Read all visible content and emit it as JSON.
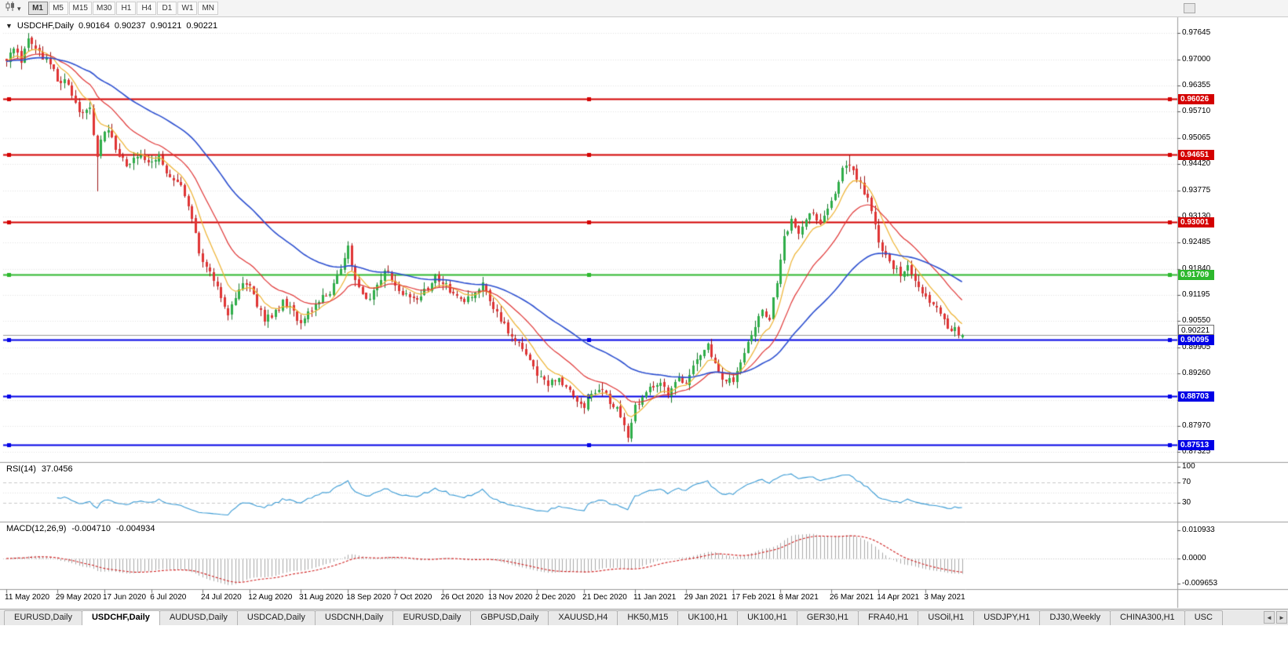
{
  "icons": {
    "chart_type": "candlestick-chart",
    "dropdown": "▾",
    "symbol_menu": "▼",
    "scroll_left": "◄",
    "scroll_right": "►"
  },
  "toolbar": {
    "timeframes": [
      {
        "label": "M1",
        "active": true
      },
      {
        "label": "M5",
        "active": false
      },
      {
        "label": "M15",
        "active": false
      },
      {
        "label": "M30",
        "active": false
      },
      {
        "label": "H1",
        "active": false
      },
      {
        "label": "H4",
        "active": false
      },
      {
        "label": "D1",
        "active": false
      },
      {
        "label": "W1",
        "active": false
      },
      {
        "label": "MN",
        "active": false
      }
    ]
  },
  "symbol_panel": {
    "menu_glyph": "▼",
    "title": "USDCHF,Daily",
    "open": "0.90164",
    "high": "0.90237",
    "low": "0.90121",
    "close": "0.90221"
  },
  "price_axis": {
    "ticks": [
      "0.97645",
      "0.97000",
      "0.96355",
      "0.95710",
      "0.95065",
      "0.94420",
      "0.93775",
      "0.93130",
      "0.92485",
      "0.91840",
      "0.91195",
      "0.90550",
      "0.89905",
      "0.89260",
      "0.88615",
      "0.87970",
      "0.87325"
    ],
    "current_price": "0.90221"
  },
  "date_axis": {
    "labels": [
      {
        "label": "11 May 2020",
        "day": 0
      },
      {
        "label": "29 May 2020",
        "day": 14
      },
      {
        "label": "17 Jun 2020",
        "day": 27
      },
      {
        "label": "6 Jul 2020",
        "day": 40
      },
      {
        "label": "24 Jul 2020",
        "day": 54
      },
      {
        "label": "12 Aug 2020",
        "day": 67
      },
      {
        "label": "31 Aug 2020",
        "day": 81
      },
      {
        "label": "18 Sep 2020",
        "day": 94
      },
      {
        "label": "7 Oct 2020",
        "day": 107
      },
      {
        "label": "26 Oct 2020",
        "day": 120
      },
      {
        "label": "13 Nov 2020",
        "day": 133
      },
      {
        "label": "2 Dec 2020",
        "day": 146
      },
      {
        "label": "21 Dec 2020",
        "day": 159
      },
      {
        "label": "11 Jan 2021",
        "day": 173
      },
      {
        "label": "29 Jan 2021",
        "day": 187
      },
      {
        "label": "17 Feb 2021",
        "day": 200
      },
      {
        "label": "8 Mar 2021",
        "day": 213
      },
      {
        "label": "26 Mar 2021",
        "day": 227
      },
      {
        "label": "14 Apr 2021",
        "day": 240
      },
      {
        "label": "3 May 2021",
        "day": 253
      }
    ]
  },
  "rsi_panel": {
    "label": "RSI(14)",
    "value": "37.0456",
    "ticks": [
      "100",
      "70",
      "30"
    ],
    "color": "#3a9bd5"
  },
  "macd_panel": {
    "label": "MACD(12,26,9)",
    "value_main": "-0.004710",
    "value_signal": "-0.004934",
    "ticks": [
      "0.010933",
      "0.0000",
      "-0.009653"
    ],
    "histogram_color": "#a9a9a9",
    "signal_color": "#d02020"
  },
  "tabs": {
    "scroll_left": "◄",
    "scroll_right": "►",
    "items": [
      {
        "label": "EURUSD,Daily",
        "active": false
      },
      {
        "label": "USDCHF,Daily",
        "active": true
      },
      {
        "label": "AUDUSD,Daily",
        "active": false
      },
      {
        "label": "USDCAD,Daily",
        "active": false
      },
      {
        "label": "USDCNH,Daily",
        "active": false
      },
      {
        "label": "EURUSD,Daily",
        "active": false
      },
      {
        "label": "GBPUSD,Daily",
        "active": false
      },
      {
        "label": "XAUUSD,H4",
        "active": false
      },
      {
        "label": "HK50,M15",
        "active": false
      },
      {
        "label": "UK100,H1",
        "active": false
      },
      {
        "label": "UK100,H1",
        "active": false
      },
      {
        "label": "GER30,H1",
        "active": false
      },
      {
        "label": "FRA40,H1",
        "active": false
      },
      {
        "label": "USOil,H1",
        "active": false
      },
      {
        "label": "USDJPY,H1",
        "active": false
      },
      {
        "label": "DJ30,Weekly",
        "active": false
      },
      {
        "label": "CHINA300,H1",
        "active": false
      },
      {
        "label": "USC",
        "active": false
      }
    ]
  },
  "chart_data": {
    "type": "candlestick",
    "title": "USDCHF,Daily",
    "ylim": [
      0.871,
      0.98
    ],
    "bars": 264,
    "last_candle": {
      "open": 0.90164,
      "high": 0.90237,
      "low": 0.90121,
      "close": 0.90221
    },
    "bull_color": "#2fae49",
    "bear_color": "#e03434",
    "levels": [
      {
        "price": 0.96026,
        "label": "0.96026",
        "color": "#d40000",
        "width": 2
      },
      {
        "price": 0.94651,
        "label": "0.94651",
        "color": "#d40000",
        "width": 2
      },
      {
        "price": 0.93001,
        "label": "0.93001",
        "color": "#d40000",
        "width": 2
      },
      {
        "price": 0.91709,
        "label": "0.91709",
        "color": "#2db82d",
        "width": 2
      },
      {
        "price": 0.90095,
        "label": "0.90095",
        "color": "#0000e6",
        "width": 2
      },
      {
        "price": 0.88703,
        "label": "0.88703",
        "color": "#0000e6",
        "width": 2
      },
      {
        "price": 0.87513,
        "label": "0.87513",
        "color": "#0000e6",
        "width": 2
      }
    ],
    "moving_averages": [
      {
        "period": 8,
        "color": "#eeb22f"
      },
      {
        "period": 20,
        "color": "#e03434"
      },
      {
        "period": 50,
        "color": "#2c4fd0"
      }
    ],
    "indicators": {
      "rsi": {
        "period": 14,
        "last": 37.0456
      },
      "macd": {
        "fast": 12,
        "slow": 26,
        "signal": 9,
        "last": -0.00471,
        "last_signal": -0.004934
      }
    },
    "wick_overrides": [
      [
        25,
        "low",
        0.9375
      ],
      [
        94,
        "high",
        0.9252
      ],
      [
        171,
        "low",
        0.8757
      ],
      [
        232,
        "high",
        0.9465
      ]
    ],
    "close_anchors": [
      [
        0,
        0.97
      ],
      [
        2,
        0.9735
      ],
      [
        4,
        0.969
      ],
      [
        6,
        0.9748
      ],
      [
        9,
        0.9712
      ],
      [
        12,
        0.9695
      ],
      [
        14,
        0.9655
      ],
      [
        17,
        0.9635
      ],
      [
        20,
        0.956
      ],
      [
        23,
        0.9575
      ],
      [
        25,
        0.9455
      ],
      [
        26,
        0.95
      ],
      [
        28,
        0.953
      ],
      [
        30,
        0.948
      ],
      [
        33,
        0.9445
      ],
      [
        36,
        0.9465
      ],
      [
        39,
        0.944
      ],
      [
        42,
        0.9468
      ],
      [
        45,
        0.9405
      ],
      [
        48,
        0.9382
      ],
      [
        51,
        0.931
      ],
      [
        53,
        0.923
      ],
      [
        55,
        0.9185
      ],
      [
        57,
        0.916
      ],
      [
        59,
        0.9105
      ],
      [
        61,
        0.907
      ],
      [
        63,
        0.912
      ],
      [
        65,
        0.9155
      ],
      [
        67,
        0.9148
      ],
      [
        69,
        0.9095
      ],
      [
        71,
        0.906
      ],
      [
        74,
        0.9075
      ],
      [
        76,
        0.91
      ],
      [
        78,
        0.9085
      ],
      [
        81,
        0.905
      ],
      [
        83,
        0.9075
      ],
      [
        86,
        0.9105
      ],
      [
        89,
        0.913
      ],
      [
        92,
        0.9185
      ],
      [
        94,
        0.9235
      ],
      [
        96,
        0.916
      ],
      [
        98,
        0.912
      ],
      [
        100,
        0.9105
      ],
      [
        103,
        0.9165
      ],
      [
        105,
        0.918
      ],
      [
        107,
        0.9145
      ],
      [
        110,
        0.912
      ],
      [
        113,
        0.9105
      ],
      [
        116,
        0.914
      ],
      [
        118,
        0.9168
      ],
      [
        120,
        0.915
      ],
      [
        123,
        0.912
      ],
      [
        126,
        0.91
      ],
      [
        129,
        0.9132
      ],
      [
        131,
        0.9145
      ],
      [
        133,
        0.9105
      ],
      [
        136,
        0.906
      ],
      [
        139,
        0.902
      ],
      [
        142,
        0.899
      ],
      [
        144,
        0.8955
      ],
      [
        146,
        0.892
      ],
      [
        149,
        0.8895
      ],
      [
        152,
        0.8915
      ],
      [
        155,
        0.888
      ],
      [
        157,
        0.8855
      ],
      [
        159,
        0.884
      ],
      [
        161,
        0.8875
      ],
      [
        164,
        0.8892
      ],
      [
        166,
        0.8855
      ],
      [
        168,
        0.8842
      ],
      [
        170,
        0.879
      ],
      [
        171,
        0.8768
      ],
      [
        173,
        0.8845
      ],
      [
        176,
        0.8885
      ],
      [
        179,
        0.8905
      ],
      [
        182,
        0.888
      ],
      [
        185,
        0.891
      ],
      [
        187,
        0.8895
      ],
      [
        189,
        0.894
      ],
      [
        191,
        0.8975
      ],
      [
        193,
        0.8995
      ],
      [
        195,
        0.8945
      ],
      [
        197,
        0.8915
      ],
      [
        200,
        0.8905
      ],
      [
        202,
        0.8955
      ],
      [
        205,
        0.9025
      ],
      [
        208,
        0.9085
      ],
      [
        210,
        0.9062
      ],
      [
        212,
        0.915
      ],
      [
        214,
        0.9265
      ],
      [
        216,
        0.93
      ],
      [
        218,
        0.9272
      ],
      [
        220,
        0.931
      ],
      [
        222,
        0.9325
      ],
      [
        224,
        0.9288
      ],
      [
        226,
        0.934
      ],
      [
        228,
        0.9372
      ],
      [
        230,
        0.9425
      ],
      [
        232,
        0.9448
      ],
      [
        234,
        0.9405
      ],
      [
        236,
        0.9372
      ],
      [
        238,
        0.9335
      ],
      [
        240,
        0.9252
      ],
      [
        242,
        0.9215
      ],
      [
        244,
        0.919
      ],
      [
        246,
        0.9165
      ],
      [
        248,
        0.9185
      ],
      [
        250,
        0.9155
      ],
      [
        253,
        0.912
      ],
      [
        255,
        0.9096
      ],
      [
        257,
        0.907
      ],
      [
        259,
        0.9046
      ],
      [
        261,
        0.9032
      ],
      [
        263,
        0.90221
      ]
    ]
  }
}
